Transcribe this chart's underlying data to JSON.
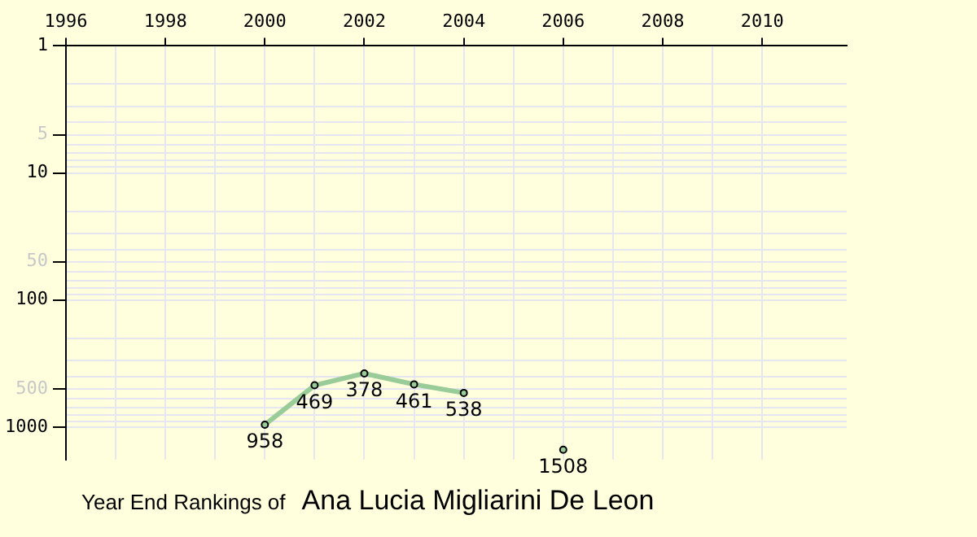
{
  "chart_data": {
    "type": "line",
    "title": "Year End Rankings of",
    "subtitle": "Ana Lucia Migliarini De Leon",
    "x": [
      2000,
      2001,
      2002,
      2003,
      2004,
      2005,
      2006
    ],
    "series": [
      {
        "color": "#99cc99",
        "values": [
          958,
          469,
          378,
          461,
          538,
          null,
          1508
        ]
      }
    ],
    "xlim": [
      1996,
      2011.7
    ],
    "xticks": [
      1996,
      {
        "value": 1997,
        "label": null
      },
      1998,
      {
        "value": 1999,
        "label": null
      },
      2000,
      {
        "value": 2001,
        "label": null
      },
      2002,
      {
        "value": 2003,
        "label": null
      },
      2004,
      {
        "value": 2005,
        "label": null
      },
      2006,
      {
        "value": 2007,
        "label": null
      },
      2008,
      {
        "value": 2009,
        "label": null
      },
      2010
    ],
    "ylim": [
      1800,
      1
    ],
    "yticks": [
      1,
      {
        "value": 2,
        "label": null
      },
      {
        "value": 3,
        "label": null
      },
      {
        "value": 4,
        "label": null
      },
      5,
      {
        "value": 6,
        "label": null
      },
      {
        "value": 7,
        "label": null
      },
      {
        "value": 8,
        "label": null
      },
      {
        "value": 9,
        "label": null
      },
      10,
      {
        "value": 20,
        "label": null
      },
      {
        "value": 30,
        "label": null
      },
      {
        "value": 40,
        "label": null
      },
      50,
      {
        "value": 60,
        "label": null
      },
      {
        "value": 70,
        "label": null
      },
      {
        "value": 80,
        "label": null
      },
      {
        "value": 90,
        "label": null
      },
      100,
      {
        "value": 200,
        "label": null
      },
      {
        "value": 300,
        "label": null
      },
      {
        "value": 400,
        "label": null
      },
      500,
      {
        "value": 600,
        "label": null
      },
      {
        "value": 700,
        "label": null
      },
      {
        "value": 800,
        "label": null
      },
      {
        "value": 900,
        "label": null
      },
      1000
    ],
    "log": "y",
    "grid": true,
    "marker": "circle",
    "line_style": "solid",
    "data_labels": true
  }
}
